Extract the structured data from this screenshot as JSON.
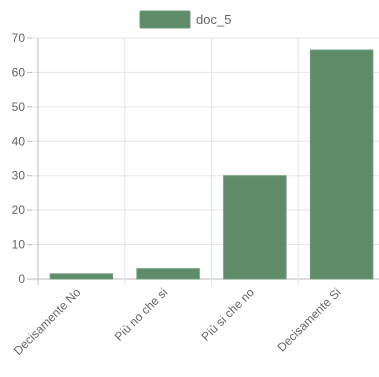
{
  "chart_data": {
    "type": "bar",
    "categories": [
      "Decisamente No",
      "Più no che si",
      "Più si che no",
      "Decisamente Si"
    ],
    "series": [
      {
        "name": "doc_5",
        "values": [
          1.5,
          3,
          30,
          66.5
        ]
      }
    ],
    "ylim": [
      0,
      70
    ],
    "yticks": [
      0,
      10,
      20,
      30,
      40,
      50,
      60,
      70
    ],
    "grid": true,
    "legend_position": "top",
    "colors": {
      "bar_fill": "#5e8c68",
      "bar_stroke": "#6f9a78",
      "grid": "#e5e5e5",
      "axis": "#bdbdbd",
      "text": "#666666"
    }
  }
}
